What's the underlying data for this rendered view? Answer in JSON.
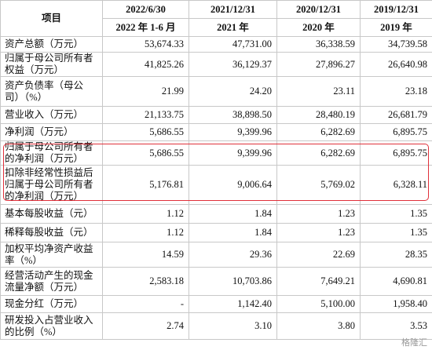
{
  "table": {
    "header": [
      [
        "项目",
        "2022/6/30",
        "2021/12/31",
        "2020/12/31",
        "2019/12/31"
      ],
      [
        "2022 年 1-6 月",
        "2021 年",
        "2020 年",
        "2019 年"
      ]
    ],
    "rows": [
      [
        "资产总额（万元）",
        "53,674.33",
        "47,731.00",
        "36,338.59",
        "34,739.58"
      ],
      [
        "归属于母公司所有者权益（万元）",
        "41,825.26",
        "36,129.37",
        "27,896.27",
        "26,640.98"
      ],
      [
        "资产负债率（母公司）（%）",
        "21.99",
        "24.20",
        "23.11",
        "23.18"
      ],
      [
        "营业收入（万元）",
        "21,133.75",
        "38,898.50",
        "28,480.19",
        "26,681.79"
      ],
      [
        "净利润（万元）",
        "5,686.55",
        "9,399.96",
        "6,282.69",
        "6,895.75"
      ],
      [
        "归属于母公司所有者的净利润（万元）",
        "5,686.55",
        "9,399.96",
        "6,282.69",
        "6,895.75"
      ],
      [
        "扣除非经常性损益后归属于母公司所有者的净利润（万元）",
        "5,176.81",
        "9,006.64",
        "5,769.02",
        "6,328.11"
      ],
      [
        "基本每股收益（元）",
        "1.12",
        "1.84",
        "1.23",
        "1.35"
      ],
      [
        "稀释每股收益（元）",
        "1.12",
        "1.84",
        "1.23",
        "1.35"
      ],
      [
        "加权平均净资产收益率（%）",
        "14.59",
        "29.36",
        "22.69",
        "28.35"
      ],
      [
        "经营活动产生的现金流量净额（万元）",
        "2,583.18",
        "10,703.86",
        "7,649.21",
        "4,690.81"
      ],
      [
        "现金分红（万元）",
        "-",
        "1,142.40",
        "5,100.00",
        "1,958.40"
      ],
      [
        "研发投入占营业收入的比例（%）",
        "2.74",
        "3.10",
        "3.80",
        "3.53"
      ]
    ]
  },
  "watermark": "格隆汇"
}
